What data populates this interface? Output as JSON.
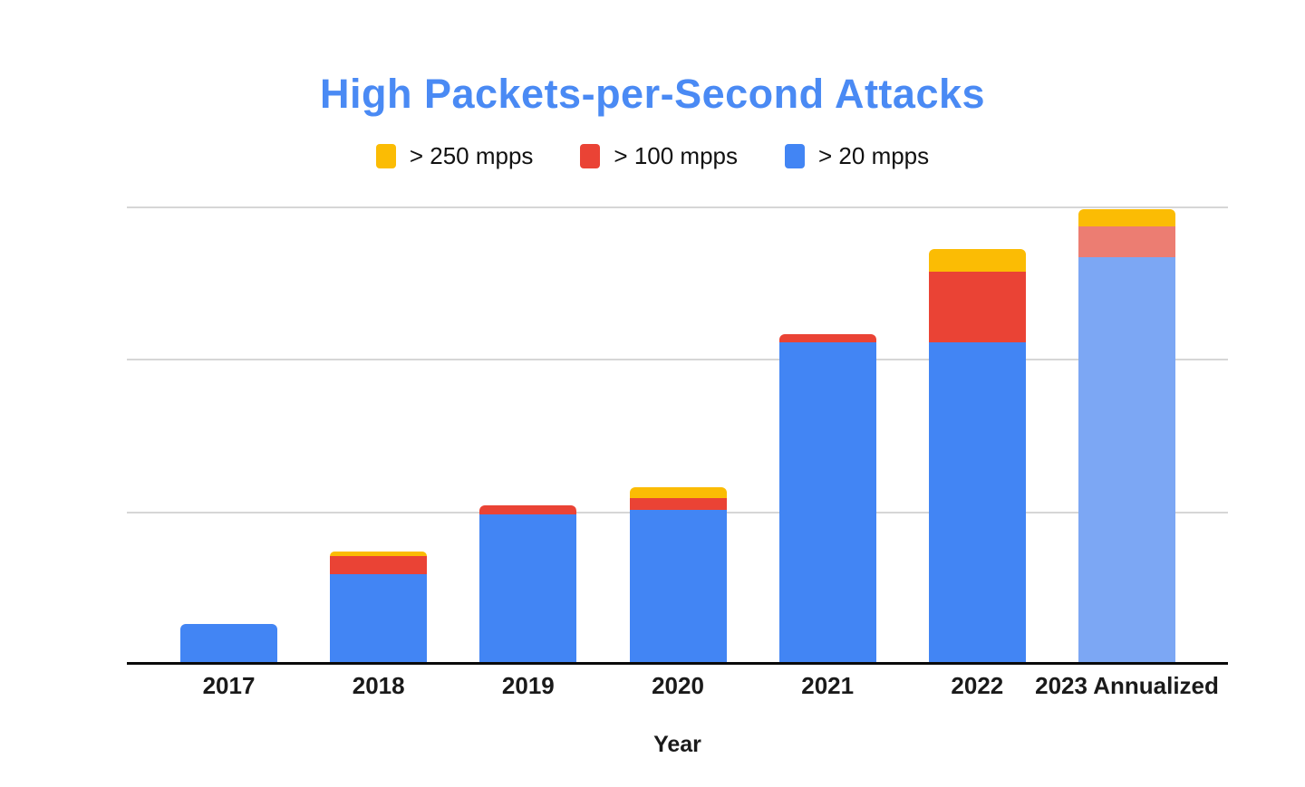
{
  "title": "High Packets-per-Second Attacks",
  "title_color": "#4A8AF4",
  "legend": [
    {
      "label": "> 250 mpps",
      "color": "#FBBC04"
    },
    {
      "label": "> 100 mpps",
      "color": "#EA4335"
    },
    {
      "label": "> 20 mpps",
      "color": "#4285F4"
    }
  ],
  "chart_data": {
    "type": "bar",
    "stacked": true,
    "title": "High Packets-per-Second Attacks",
    "xlabel": "Year",
    "ylabel": "",
    "categories": [
      "2017",
      "2018",
      "2019",
      "2020",
      "2021",
      "2022",
      "2023 Annualized"
    ],
    "series": [
      {
        "name": "> 20 mpps",
        "color": "#4285F4",
        "color_annualized": "#7CA7F4",
        "values": [
          13,
          29.5,
          49,
          50.5,
          105.5,
          105.5,
          133.5
        ]
      },
      {
        "name": "> 100 mpps",
        "color": "#EA4335",
        "color_annualized": "#EC7D72",
        "values": [
          0,
          6,
          3,
          4,
          2.5,
          23,
          10
        ]
      },
      {
        "name": "> 250 mpps",
        "color": "#FBBC04",
        "color_annualized": "#FBBC04",
        "values": [
          0,
          1.5,
          0,
          3.5,
          0,
          7.5,
          5.5
        ]
      }
    ],
    "annualized_category": "2023 Annualized",
    "ylim": [
      0,
      150
    ],
    "gridline_interval": 50,
    "y_axis_tick_labels_visible": false,
    "units": "relative (y-axis unlabeled; 50 units per gridline)",
    "grid": true,
    "legend_position": "top"
  }
}
